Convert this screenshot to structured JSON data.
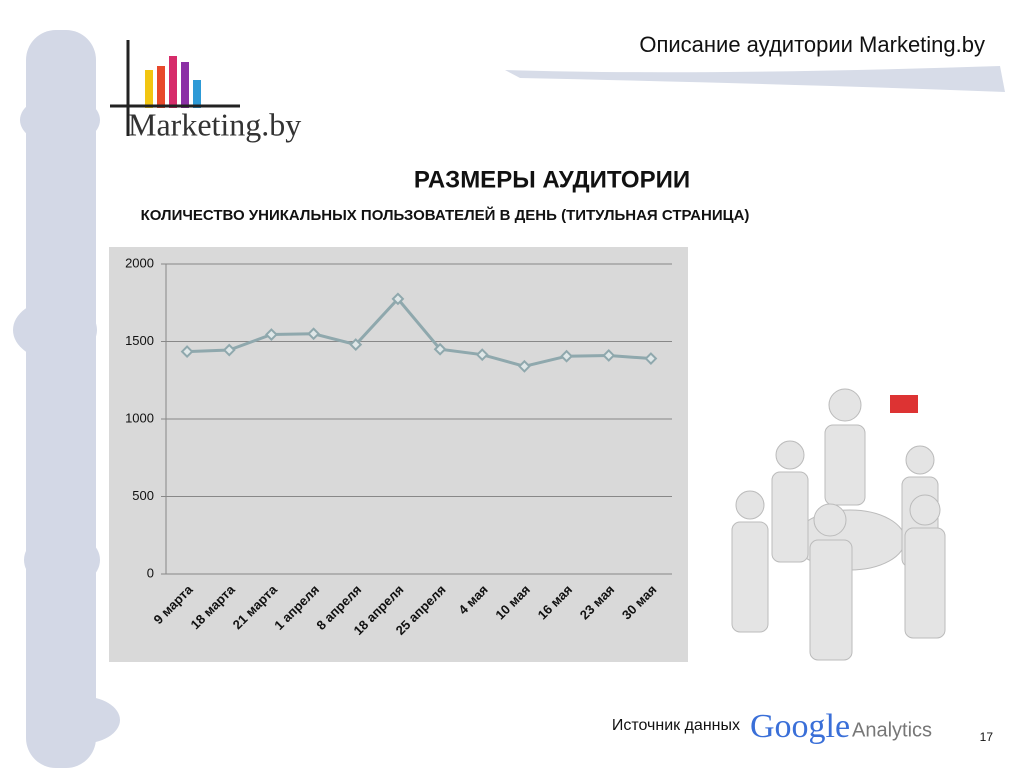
{
  "header": {
    "title": "Описание аудитории Marketing.by"
  },
  "logo": {
    "text": "Marketing.by"
  },
  "footer": {
    "source_label": "Источник данных",
    "brand": "Google",
    "product": "Analytics",
    "page": "17"
  },
  "chart_data": {
    "type": "line",
    "title": "РАЗМЕРЫ АУДИТОРИИ",
    "subtitle": "КОЛИЧЕСТВО УНИКАЛЬНЫХ ПОЛЬЗОВАТЕЛЕЙ В ДЕНЬ (ТИТУЛЬНАЯ СТРАНИЦА)",
    "categories": [
      "9 марта",
      "18 марта",
      "21 марта",
      "1 апреля",
      "8 апреля",
      "18 апреля",
      "25 апреля",
      "4 мая",
      "10 мая",
      "16 мая",
      "23 мая",
      "30 мая"
    ],
    "values": [
      1435,
      1445,
      1545,
      1550,
      1480,
      1775,
      1450,
      1415,
      1340,
      1405,
      1410,
      1390
    ],
    "color": "#8fa8ad",
    "ylim": [
      0,
      2000
    ],
    "yticks": [
      0,
      500,
      1000,
      1500,
      2000
    ],
    "grid": true
  }
}
